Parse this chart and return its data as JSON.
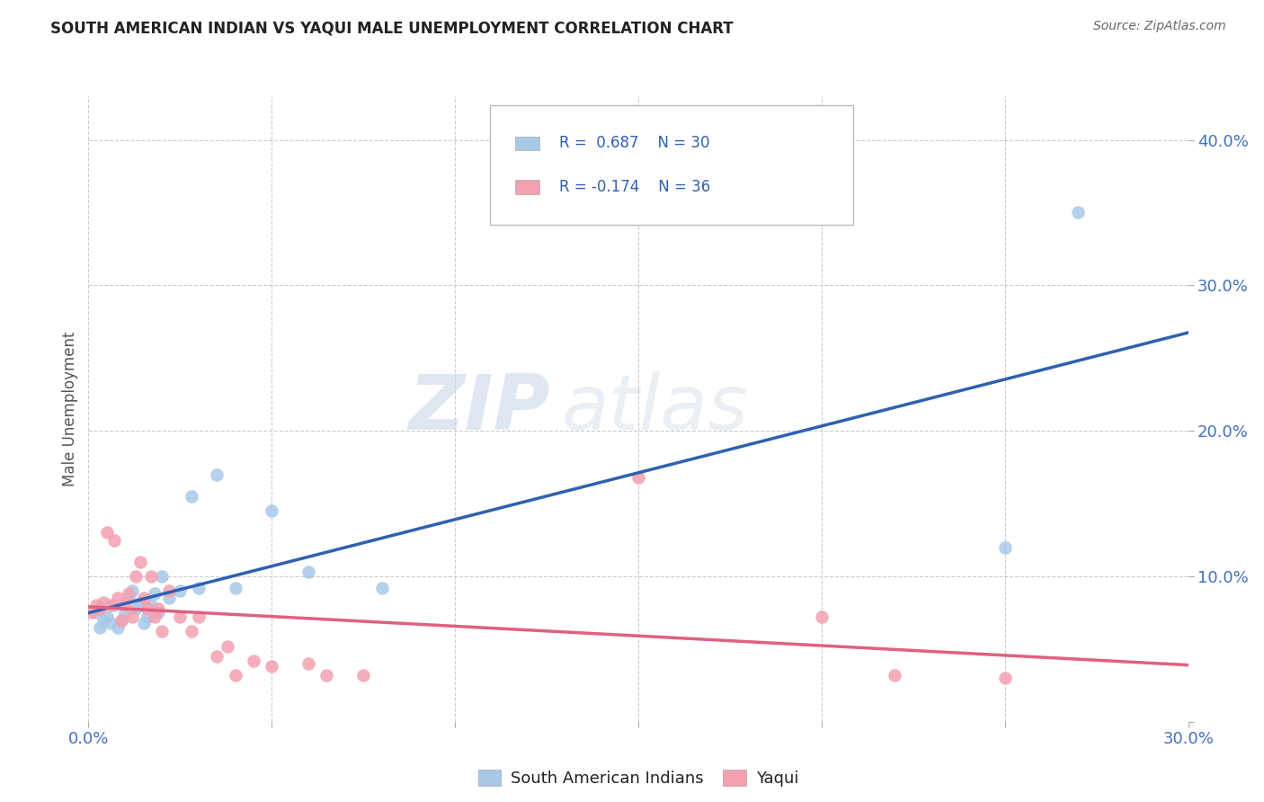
{
  "title": "SOUTH AMERICAN INDIAN VS YAQUI MALE UNEMPLOYMENT CORRELATION CHART",
  "source": "Source: ZipAtlas.com",
  "ylabel": "Male Unemployment",
  "xlim": [
    0.0,
    0.3
  ],
  "ylim": [
    0.0,
    0.43
  ],
  "xticks": [
    0.0,
    0.05,
    0.1,
    0.15,
    0.2,
    0.25,
    0.3
  ],
  "yticks": [
    0.0,
    0.1,
    0.2,
    0.3,
    0.4
  ],
  "blue_R": 0.687,
  "blue_N": 30,
  "pink_R": -0.174,
  "pink_N": 36,
  "blue_color": "#a8c8e8",
  "pink_color": "#f4a0b0",
  "blue_line_color": "#3060b0",
  "pink_line_color": "#e06080",
  "watermark_zip": "ZIP",
  "watermark_atlas": "atlas",
  "legend_label_blue": "South American Indians",
  "legend_label_pink": "Yaqui",
  "blue_points_x": [
    0.002,
    0.003,
    0.004,
    0.005,
    0.006,
    0.007,
    0.008,
    0.009,
    0.01,
    0.011,
    0.012,
    0.013,
    0.014,
    0.015,
    0.016,
    0.017,
    0.018,
    0.019,
    0.02,
    0.022,
    0.025,
    0.028,
    0.03,
    0.035,
    0.04,
    0.05,
    0.06,
    0.08,
    0.25,
    0.27
  ],
  "blue_points_y": [
    0.075,
    0.065,
    0.07,
    0.072,
    0.068,
    0.08,
    0.065,
    0.07,
    0.075,
    0.085,
    0.09,
    0.078,
    0.082,
    0.068,
    0.072,
    0.08,
    0.088,
    0.075,
    0.1,
    0.085,
    0.09,
    0.155,
    0.092,
    0.17,
    0.092,
    0.145,
    0.103,
    0.092,
    0.12,
    0.35
  ],
  "pink_points_x": [
    0.001,
    0.002,
    0.003,
    0.004,
    0.005,
    0.006,
    0.007,
    0.008,
    0.009,
    0.01,
    0.011,
    0.012,
    0.013,
    0.014,
    0.015,
    0.016,
    0.017,
    0.018,
    0.019,
    0.02,
    0.022,
    0.025,
    0.028,
    0.03,
    0.035,
    0.038,
    0.04,
    0.045,
    0.05,
    0.06,
    0.065,
    0.075,
    0.15,
    0.2,
    0.22,
    0.25
  ],
  "pink_points_y": [
    0.075,
    0.08,
    0.078,
    0.082,
    0.13,
    0.08,
    0.125,
    0.085,
    0.07,
    0.08,
    0.088,
    0.072,
    0.1,
    0.11,
    0.085,
    0.078,
    0.1,
    0.072,
    0.078,
    0.062,
    0.09,
    0.072,
    0.062,
    0.072,
    0.045,
    0.052,
    0.032,
    0.042,
    0.038,
    0.04,
    0.032,
    0.032,
    0.168,
    0.072,
    0.032,
    0.03
  ],
  "background_color": "#ffffff",
  "grid_color": "#cccccc"
}
